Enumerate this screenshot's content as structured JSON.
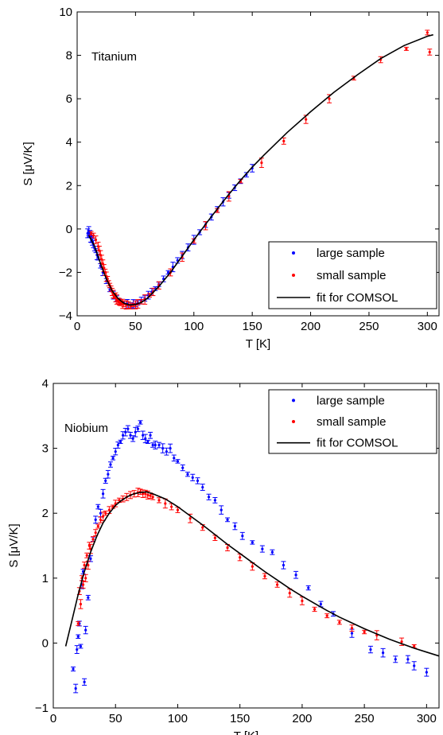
{
  "chart_data": [
    {
      "type": "scatter",
      "annotation": "Titanium",
      "xlabel": "T [K]",
      "ylabel": "S [μV/K]",
      "xlim": [
        0,
        310
      ],
      "ylim": [
        -4,
        10
      ],
      "xticks": [
        0,
        50,
        100,
        150,
        200,
        250,
        300
      ],
      "yticks": [
        -4,
        -2,
        0,
        2,
        4,
        6,
        8,
        10
      ],
      "xtick_labels": [
        "0",
        "50",
        "100",
        "150",
        "200",
        "250",
        "300"
      ],
      "ytick_labels": [
        "−4",
        "−2",
        "0",
        "2",
        "4",
        "6",
        "8",
        "10"
      ],
      "grid": false,
      "legend_position": "bottom-right",
      "colors": {
        "large": "#0000ff",
        "small": "#ff0000",
        "fit": "#000000"
      },
      "legend": [
        "large sample",
        "small sample",
        "fit for COMSOL"
      ],
      "series": [
        {
          "name": "large sample",
          "kind": "points",
          "x": [
            9,
            10,
            10.5,
            11,
            11.5,
            12,
            12.5,
            13,
            14,
            15,
            16,
            17,
            18,
            20,
            22,
            25,
            28,
            31,
            34,
            37,
            40,
            43,
            46,
            48,
            50,
            52,
            55,
            58,
            61,
            64,
            67,
            70,
            74,
            78,
            82,
            86,
            90,
            95,
            100,
            105,
            110,
            115,
            120,
            125,
            130,
            135,
            140,
            145,
            150
          ],
          "y": [
            -0.2,
            -0.1,
            -0.3,
            -0.2,
            -0.4,
            -0.3,
            -0.5,
            -0.6,
            -0.7,
            -0.9,
            -1.0,
            -1.2,
            -1.3,
            -1.7,
            -2.0,
            -2.4,
            -2.8,
            -3.05,
            -3.2,
            -3.35,
            -3.4,
            -3.45,
            -3.5,
            -3.45,
            -3.45,
            -3.4,
            -3.3,
            -3.2,
            -3.05,
            -2.9,
            -2.75,
            -2.55,
            -2.3,
            -2.0,
            -1.75,
            -1.45,
            -1.2,
            -0.85,
            -0.5,
            -0.15,
            0.2,
            0.55,
            0.9,
            1.25,
            1.55,
            1.9,
            2.2,
            2.5,
            2.8
          ]
        },
        {
          "name": "small sample",
          "kind": "points",
          "x": [
            12,
            14,
            16,
            18,
            19,
            20,
            21,
            22,
            23,
            24,
            25,
            26,
            27,
            28,
            29,
            30,
            31,
            32,
            33,
            34,
            35,
            36,
            37,
            38,
            39,
            40,
            42,
            44,
            46,
            48,
            50,
            52,
            55,
            58,
            62,
            65,
            70,
            80,
            90,
            100,
            110,
            120,
            130,
            140,
            158,
            177,
            196,
            216,
            237,
            260,
            282,
            300,
            302
          ],
          "y": [
            -0.2,
            -0.3,
            -0.5,
            -0.8,
            -1.0,
            -1.2,
            -1.4,
            -1.6,
            -1.8,
            -2.0,
            -2.2,
            -2.3,
            -2.5,
            -2.6,
            -2.75,
            -2.9,
            -3.0,
            -3.1,
            -3.15,
            -3.25,
            -3.3,
            -3.35,
            -3.4,
            -3.4,
            -3.45,
            -3.45,
            -3.5,
            -3.5,
            -3.55,
            -3.5,
            -3.5,
            -3.45,
            -3.35,
            -3.25,
            -3.05,
            -2.9,
            -2.6,
            -2.0,
            -1.3,
            -0.55,
            0.15,
            0.85,
            1.5,
            2.2,
            3.05,
            4.05,
            5.05,
            6.0,
            6.95,
            7.8,
            8.3,
            9.05,
            8.15
          ]
        },
        {
          "name": "fit for COMSOL",
          "kind": "line",
          "x": [
            10,
            15,
            20,
            25,
            30,
            35,
            40,
            45,
            50,
            55,
            60,
            70,
            80,
            90,
            100,
            110,
            120,
            130,
            140,
            150,
            160,
            180,
            200,
            220,
            240,
            260,
            280,
            300,
            305
          ],
          "y": [
            -0.3,
            -0.8,
            -1.6,
            -2.3,
            -2.85,
            -3.2,
            -3.42,
            -3.5,
            -3.48,
            -3.38,
            -3.2,
            -2.65,
            -2.0,
            -1.25,
            -0.5,
            0.22,
            0.92,
            1.6,
            2.25,
            2.85,
            3.4,
            4.45,
            5.4,
            6.3,
            7.1,
            7.85,
            8.45,
            8.88,
            8.95
          ]
        }
      ]
    },
    {
      "type": "scatter",
      "annotation": "Niobium",
      "xlabel": "T [K]",
      "ylabel": "S [μV/K]",
      "xlim": [
        0,
        310
      ],
      "ylim": [
        -1,
        4
      ],
      "xticks": [
        0,
        50,
        100,
        150,
        200,
        250,
        300
      ],
      "yticks": [
        -1,
        0,
        1,
        2,
        3,
        4
      ],
      "xtick_labels": [
        "0",
        "50",
        "100",
        "150",
        "200",
        "250",
        "300"
      ],
      "ytick_labels": [
        "−1",
        "0",
        "1",
        "2",
        "3",
        "4"
      ],
      "grid": false,
      "legend_position": "top-right",
      "colors": {
        "large": "#0000ff",
        "small": "#ff0000",
        "fit": "#000000"
      },
      "legend": [
        "large sample",
        "small sample",
        "fit for COMSOL"
      ],
      "series": [
        {
          "name": "large sample",
          "kind": "points",
          "x": [
            16,
            18,
            19,
            20,
            21,
            22,
            23,
            24,
            25,
            26,
            28,
            30,
            32,
            34,
            36,
            38,
            40,
            42,
            44,
            46,
            48,
            50,
            52,
            54,
            56,
            58,
            60,
            62,
            64,
            66,
            68,
            70,
            72,
            74,
            76,
            78,
            80,
            82,
            85,
            88,
            91,
            94,
            97,
            100,
            104,
            108,
            112,
            116,
            120,
            125,
            130,
            135,
            140,
            146,
            152,
            160,
            168,
            176,
            185,
            195,
            205,
            215,
            225,
            240,
            255,
            265,
            275,
            285,
            290,
            300
          ],
          "y": [
            -0.4,
            -0.7,
            -0.1,
            0.1,
            0.3,
            -0.05,
            0.9,
            1.1,
            -0.6,
            0.2,
            0.7,
            1.3,
            1.6,
            1.9,
            2.1,
            2.0,
            2.3,
            2.5,
            2.6,
            2.75,
            2.85,
            2.95,
            3.05,
            3.1,
            3.2,
            3.25,
            3.3,
            3.2,
            3.15,
            3.25,
            3.3,
            3.4,
            3.2,
            3.15,
            3.1,
            3.2,
            3.05,
            3.05,
            3.05,
            3.0,
            2.95,
            3.0,
            2.85,
            2.8,
            2.7,
            2.6,
            2.55,
            2.5,
            2.4,
            2.25,
            2.2,
            2.05,
            1.9,
            1.8,
            1.65,
            1.55,
            1.45,
            1.4,
            1.2,
            1.05,
            0.85,
            0.6,
            0.45,
            0.15,
            -0.1,
            -0.15,
            -0.25,
            -0.25,
            -0.35,
            -0.45
          ]
        },
        {
          "name": "small sample",
          "kind": "points",
          "x": [
            20,
            21,
            22,
            23,
            24,
            25,
            26,
            27,
            28,
            29,
            30,
            32,
            34,
            36,
            38,
            40,
            42,
            45,
            48,
            50,
            53,
            56,
            59,
            62,
            65,
            68,
            70,
            72,
            74,
            76,
            78,
            80,
            85,
            90,
            95,
            100,
            110,
            120,
            130,
            140,
            150,
            160,
            170,
            180,
            190,
            200,
            210,
            220,
            230,
            240,
            250,
            260,
            280,
            290
          ],
          "y": [
            0.3,
            0.8,
            0.6,
            1.0,
            0.9,
            1.2,
            1.0,
            1.35,
            1.2,
            1.5,
            1.45,
            1.6,
            1.7,
            1.8,
            1.9,
            1.95,
            2.0,
            2.05,
            2.1,
            2.15,
            2.2,
            2.22,
            2.25,
            2.28,
            2.3,
            2.32,
            2.33,
            2.3,
            2.3,
            2.28,
            2.27,
            2.25,
            2.2,
            2.15,
            2.1,
            2.05,
            1.92,
            1.78,
            1.62,
            1.47,
            1.32,
            1.18,
            1.03,
            0.9,
            0.77,
            0.65,
            0.52,
            0.42,
            0.32,
            0.23,
            0.17,
            0.12,
            0.02,
            -0.05
          ]
        },
        {
          "name": "fit for COMSOL",
          "kind": "line",
          "x": [
            10,
            15,
            20,
            25,
            30,
            35,
            40,
            45,
            50,
            55,
            60,
            65,
            70,
            75,
            80,
            90,
            100,
            110,
            120,
            130,
            140,
            150,
            160,
            170,
            180,
            190,
            200,
            210,
            220,
            230,
            240,
            250,
            260,
            270,
            280,
            290,
            300,
            310
          ],
          "y": [
            -0.05,
            0.35,
            0.75,
            1.1,
            1.4,
            1.65,
            1.85,
            2.0,
            2.12,
            2.2,
            2.26,
            2.3,
            2.32,
            2.33,
            2.3,
            2.22,
            2.1,
            1.96,
            1.82,
            1.67,
            1.52,
            1.38,
            1.24,
            1.1,
            0.97,
            0.84,
            0.72,
            0.61,
            0.5,
            0.4,
            0.31,
            0.22,
            0.14,
            0.06,
            -0.01,
            -0.08,
            -0.14,
            -0.2
          ]
        }
      ]
    }
  ]
}
